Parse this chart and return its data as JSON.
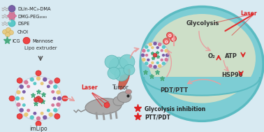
{
  "bg_color": "#d8eaf2",
  "cell_outer_color": "#7dcdd4",
  "cell_rim_color": "#5bbbc2",
  "cell_interior": "#cddfc8",
  "legend_items": [
    {
      "label": "DLin-MC₃-DMA",
      "color": "#7b5ea7",
      "shape": "circle"
    },
    {
      "label": "DMG-PEG₂₀₀₀",
      "color": "#d4789a",
      "shape": "circle"
    },
    {
      "label": "DSPE",
      "color": "#5bc8c8",
      "shape": "circle"
    },
    {
      "label": "ChOI",
      "color": "#e8c87a",
      "shape": "blob"
    },
    {
      "label": "ICG",
      "color": "#4aaa80",
      "shape": "star"
    },
    {
      "label": "Mannose",
      "color": "#e05050",
      "shape": "circle"
    }
  ],
  "lipo_extruder": "Lipo extruder",
  "imlipo": "imLipo",
  "tumors": "Tumor",
  "laser": "Laser",
  "glycolysis": "Glycolysis",
  "o2": "O₂",
  "atp": "ATP",
  "hsp90": "HSP90",
  "pdt_ptt": "PDT/PTT",
  "glycolysis_inhibition": "Glycolysis inhibition",
  "ptt_pdt": "PTT/PDT",
  "arrow_color": "#e8a0a0",
  "red_color": "#dd2222",
  "star_fill": "#dd2222",
  "nano_shell_colors": [
    "#7b5ea7",
    "#d4789a",
    "#5bc8c8",
    "#e8c87a"
  ],
  "icg_color": "#4aaa80",
  "mannose_color": "#e05050",
  "text_dark": "#333333",
  "text_black": "#222222"
}
